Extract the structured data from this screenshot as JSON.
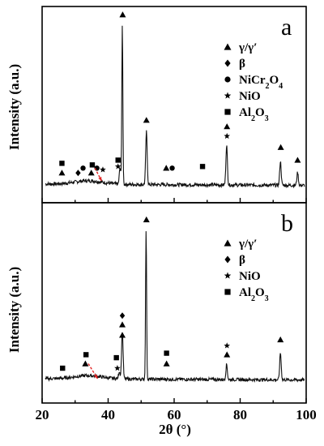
{
  "chart_data": {
    "type": "line",
    "xlabel": "2θ (°)",
    "ylabel": "Intensity (a.u.)",
    "xlim": [
      20,
      100
    ],
    "xticks": [
      "20",
      "40",
      "60",
      "80",
      "100"
    ],
    "grid": false,
    "legend_position": "top-right",
    "panels": [
      {
        "label": "a",
        "legend": [
          {
            "marker": "triangle",
            "text": "γ/γ′"
          },
          {
            "marker": "diamond",
            "text": "β"
          },
          {
            "marker": "circle",
            "text": "NiCr",
            "sub": "2",
            "text2": "O",
            "sub2": "4"
          },
          {
            "marker": "star",
            "text": "NiO"
          },
          {
            "marker": "square",
            "text": "Al",
            "sub": "2",
            "text2": "O",
            "sub2": "3"
          }
        ],
        "peaks": [
          {
            "x": 44.3,
            "h": 1.0
          },
          {
            "x": 51.6,
            "h": 0.33
          },
          {
            "x": 75.9,
            "h": 0.25
          },
          {
            "x": 92.2,
            "h": 0.15
          },
          {
            "x": 97.4,
            "h": 0.08
          },
          {
            "x": 43.6,
            "h": 0.1
          }
        ],
        "markers": [
          {
            "type": "triangle",
            "x": 44.4,
            "y": 1.06
          },
          {
            "type": "triangle",
            "x": 51.6,
            "y": 0.4
          },
          {
            "type": "triangle",
            "x": 76.0,
            "y": 0.36
          },
          {
            "type": "star",
            "x": 76.0,
            "y": 0.3
          },
          {
            "type": "triangle",
            "x": 92.3,
            "y": 0.23
          },
          {
            "type": "triangle",
            "x": 97.4,
            "y": 0.15
          },
          {
            "type": "square",
            "x": 26.0,
            "y": 0.13
          },
          {
            "type": "triangle",
            "x": 26.0,
            "y": 0.07
          },
          {
            "type": "diamond",
            "x": 30.9,
            "y": 0.07
          },
          {
            "type": "circle",
            "x": 32.4,
            "y": 0.1
          },
          {
            "type": "square",
            "x": 35.2,
            "y": 0.12
          },
          {
            "type": "triangle",
            "x": 34.9,
            "y": 0.07
          },
          {
            "type": "circle",
            "x": 36.6,
            "y": 0.1
          },
          {
            "type": "star",
            "x": 38.4,
            "y": 0.09
          },
          {
            "type": "square",
            "x": 43.0,
            "y": 0.15
          },
          {
            "type": "star",
            "x": 43.0,
            "y": 0.11
          },
          {
            "type": "triangle",
            "x": 57.6,
            "y": 0.1
          },
          {
            "type": "circle",
            "x": 59.4,
            "y": 0.1
          },
          {
            "type": "square",
            "x": 68.6,
            "y": 0.11
          }
        ],
        "arrow": {
          "x1": 36.0,
          "y1": 0.1,
          "x2": 38.0,
          "y2": 0.02
        }
      },
      {
        "label": "b",
        "legend": [
          {
            "marker": "triangle",
            "text": "γ/γ′"
          },
          {
            "marker": "diamond",
            "text": "β"
          },
          {
            "marker": "star",
            "text": "NiO"
          },
          {
            "marker": "square",
            "text": "Al",
            "sub": "2",
            "text2": "O",
            "sub2": "3"
          }
        ],
        "peaks": [
          {
            "x": 44.3,
            "h": 0.32
          },
          {
            "x": 51.5,
            "h": 1.0
          },
          {
            "x": 75.9,
            "h": 0.1
          },
          {
            "x": 92.2,
            "h": 0.18
          },
          {
            "x": 43.4,
            "h": 0.05
          }
        ],
        "markers": [
          {
            "type": "triangle",
            "x": 51.6,
            "y": 1.06
          },
          {
            "type": "diamond",
            "x": 44.3,
            "y": 0.42
          },
          {
            "type": "triangle",
            "x": 44.3,
            "y": 0.36
          },
          {
            "type": "triangle",
            "x": 44.3,
            "y": 0.29
          },
          {
            "type": "star",
            "x": 76.0,
            "y": 0.22
          },
          {
            "type": "triangle",
            "x": 76.0,
            "y": 0.16
          },
          {
            "type": "triangle",
            "x": 92.2,
            "y": 0.26
          },
          {
            "type": "square",
            "x": 26.2,
            "y": 0.07
          },
          {
            "type": "square",
            "x": 33.3,
            "y": 0.16
          },
          {
            "type": "triangle",
            "x": 33.1,
            "y": 0.1
          },
          {
            "type": "square",
            "x": 42.5,
            "y": 0.14
          },
          {
            "type": "star",
            "x": 42.8,
            "y": 0.07
          },
          {
            "type": "square",
            "x": 57.7,
            "y": 0.17
          },
          {
            "type": "triangle",
            "x": 57.7,
            "y": 0.1
          }
        ],
        "arrow": {
          "x1": 34.0,
          "y1": 0.1,
          "x2": 36.8,
          "y2": 0.0
        }
      }
    ]
  }
}
